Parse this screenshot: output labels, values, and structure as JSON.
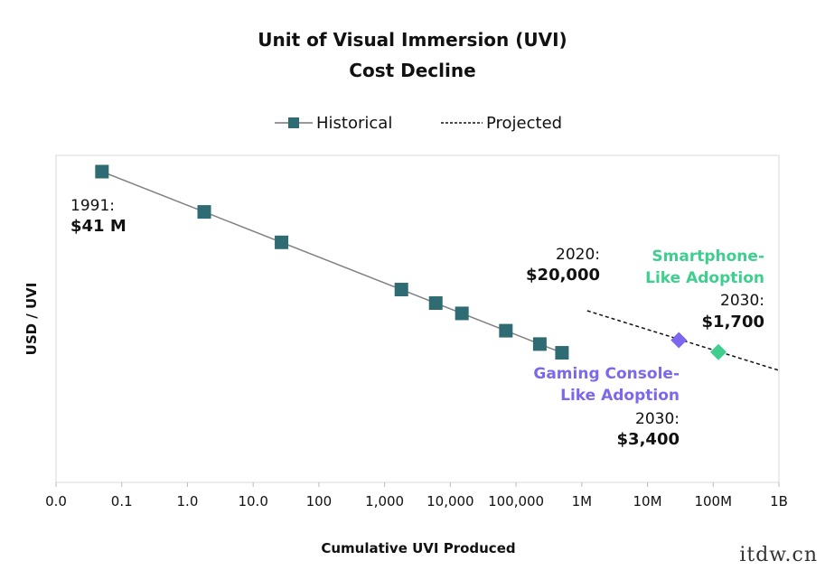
{
  "chart_data": {
    "type": "line",
    "title": "Unit of Visual Immersion (UVI)",
    "subtitle": "Cost Decline",
    "xlabel": "Cumulative UVI Produced",
    "ylabel": "USD / UVI",
    "x_scale": "log",
    "x_ticks": [
      "0.0",
      "0.1",
      "1.0",
      "10.0",
      "100",
      "1,000",
      "10,000",
      "100,000",
      "1M",
      "10M",
      "100M",
      "1B"
    ],
    "xlim": [
      0.01,
      1000000000
    ],
    "y_scale": "log",
    "legend": {
      "placement": "top-center",
      "entries": [
        "Historical",
        "Projected"
      ]
    },
    "series": [
      {
        "name": "Historical",
        "style": "solid-with-square-markers",
        "color": "#2f6b73",
        "points": [
          {
            "x": 0.05,
            "label_year": "1991",
            "label_value": "$41 M"
          },
          {
            "x": 1.8
          },
          {
            "x": 27
          },
          {
            "x": 1800
          },
          {
            "x": 6000
          },
          {
            "x": 15000
          },
          {
            "x": 70000
          },
          {
            "x": 230000
          },
          {
            "x": 500000,
            "label_year": "2020",
            "label_value": "$20,000"
          }
        ]
      },
      {
        "name": "Projected",
        "style": "dashed",
        "color": "#111111",
        "x_range": [
          1000000,
          1000000000
        ]
      }
    ],
    "annotations": [
      {
        "name": "Gaming Console-Like Adoption",
        "line1": "Gaming Console-",
        "line2": "Like Adoption",
        "year": "2030:",
        "value": "$3,400",
        "x": 30000000,
        "color": "#7b68ee"
      },
      {
        "name": "Smartphone-Like Adoption",
        "line1": "Smartphone-",
        "line2": "Like Adoption",
        "year": "2030",
        "value": "$1,700",
        "x": 120000000,
        "color": "#3ecf8e"
      }
    ],
    "labels": {
      "first_year": "1991:",
      "first_value": "$41 M",
      "hist_end_year": "2020:",
      "hist_end_value": "$20,000",
      "smart_year": "2030:",
      "smart_value": "$1,700",
      "game_year": "2030:",
      "game_value": "$3,400"
    },
    "grid": false
  },
  "watermark": "itdw.cn"
}
